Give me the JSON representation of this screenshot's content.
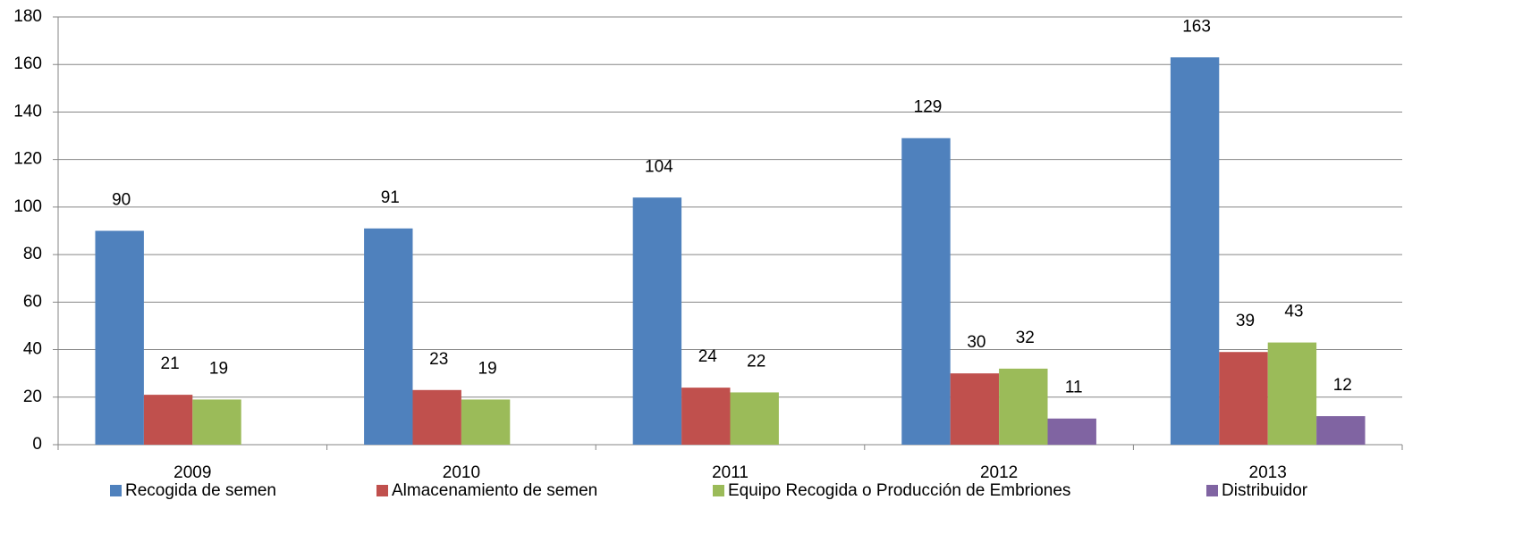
{
  "chart_data": {
    "type": "bar",
    "categories": [
      "2009",
      "2010",
      "2011",
      "2012",
      "2013"
    ],
    "series": [
      {
        "name": "Recogida de semen",
        "color": "#4f81bd",
        "values": [
          90,
          91,
          104,
          129,
          163
        ]
      },
      {
        "name": "Almacenamiento de semen",
        "color": "#c0504d",
        "values": [
          21,
          23,
          24,
          30,
          39
        ]
      },
      {
        "name": "Equipo Recogida o Producción de Embriones",
        "color": "#9bbb59",
        "values": [
          19,
          19,
          22,
          32,
          43
        ]
      },
      {
        "name": "Distribuidor",
        "color": "#8064a2",
        "values": [
          null,
          null,
          null,
          11,
          12
        ]
      }
    ],
    "ylim": [
      0,
      180
    ],
    "yticks": [
      0,
      20,
      40,
      60,
      80,
      100,
      120,
      140,
      160,
      180
    ],
    "grid": true,
    "legend": "bottom"
  }
}
